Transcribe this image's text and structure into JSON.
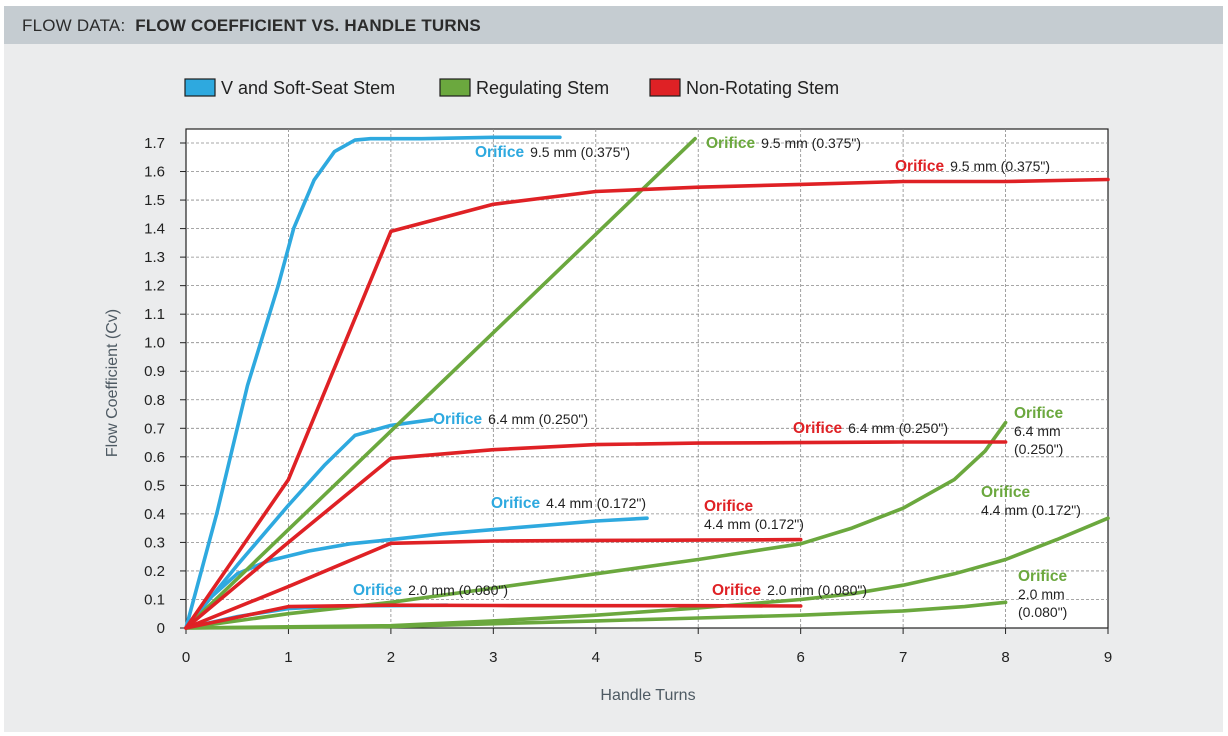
{
  "header": {
    "prefix": "FLOW DATA:",
    "title": "FLOW COEFFICIENT VS. HANDLE TURNS"
  },
  "colors": {
    "header_bg": "#c5ccd1",
    "panel_bg": "#ebeced",
    "v_soft_seat": "#2ea9df",
    "regulating": "#6ba83e",
    "non_rotating": "#df2125"
  },
  "legend": [
    {
      "label": "V and Soft-Seat Stem",
      "color": "#2ea9df"
    },
    {
      "label": "Regulating Stem",
      "color": "#6ba83e"
    },
    {
      "label": "Non-Rotating Stem",
      "color": "#df2125"
    }
  ],
  "chart_data": {
    "type": "line",
    "xlabel": "Handle Turns",
    "ylabel": "Flow Coefficient (Cv)",
    "xlim": [
      0,
      9
    ],
    "ylim": [
      0,
      1.75
    ],
    "x_ticks": [
      "0",
      "1",
      "2",
      "3",
      "4",
      "5",
      "6",
      "7",
      "8",
      "9"
    ],
    "y_ticks": [
      "0",
      "0.1",
      "0.2",
      "0.3",
      "0.4",
      "0.5",
      "0.6",
      "0.7",
      "0.8",
      "0.9",
      "1.0",
      "1.1",
      "1.2",
      "1.3",
      "1.4",
      "1.5",
      "1.6",
      "1.7"
    ],
    "grid": true,
    "series": [
      {
        "stem": "V and Soft-Seat Stem",
        "color": "#2ea9df",
        "points": [
          [
            0,
            0
          ],
          [
            0.3,
            0.4
          ],
          [
            0.6,
            0.85
          ],
          [
            0.9,
            1.2
          ],
          [
            1.05,
            1.4
          ],
          [
            1.25,
            1.57
          ],
          [
            1.45,
            1.67
          ],
          [
            1.65,
            1.71
          ],
          [
            1.8,
            1.715
          ],
          [
            2.3,
            1.715
          ],
          [
            3.0,
            1.72
          ],
          [
            3.65,
            1.72
          ]
        ]
      },
      {
        "stem": "V and Soft-Seat Stem",
        "color": "#2ea9df",
        "points": [
          [
            0,
            0
          ],
          [
            0.5,
            0.22
          ],
          [
            1.0,
            0.43
          ],
          [
            1.35,
            0.57
          ],
          [
            1.65,
            0.675
          ],
          [
            2.0,
            0.71
          ],
          [
            2.4,
            0.73
          ]
        ]
      },
      {
        "stem": "V and Soft-Seat Stem",
        "color": "#2ea9df",
        "points": [
          [
            0,
            0
          ],
          [
            0.25,
            0.11
          ],
          [
            0.5,
            0.19
          ],
          [
            0.8,
            0.235
          ],
          [
            1.2,
            0.27
          ],
          [
            1.6,
            0.295
          ],
          [
            2.0,
            0.31
          ],
          [
            2.5,
            0.33
          ],
          [
            3.0,
            0.345
          ],
          [
            3.5,
            0.36
          ],
          [
            4.0,
            0.375
          ],
          [
            4.5,
            0.385
          ]
        ]
      },
      {
        "stem": "V and Soft-Seat Stem",
        "color": "#2ea9df",
        "points": [
          [
            0,
            0
          ],
          [
            0.5,
            0.04
          ],
          [
            1.0,
            0.068
          ],
          [
            1.5,
            0.077
          ],
          [
            2.0,
            0.078
          ],
          [
            2.55,
            0.08
          ]
        ]
      },
      {
        "stem": "Regulating Stem",
        "color": "#6ba83e",
        "points": [
          [
            0,
            0
          ],
          [
            1,
            0.345
          ],
          [
            2,
            0.69
          ],
          [
            3,
            1.035
          ],
          [
            4,
            1.38
          ],
          [
            4.97,
            1.715
          ]
        ]
      },
      {
        "stem": "Regulating Stem",
        "color": "#6ba83e",
        "points": [
          [
            0,
            0
          ],
          [
            1,
            0.05
          ],
          [
            2,
            0.09
          ],
          [
            3,
            0.14
          ],
          [
            4,
            0.19
          ],
          [
            5,
            0.24
          ],
          [
            6,
            0.295
          ],
          [
            6.5,
            0.35
          ],
          [
            7,
            0.42
          ],
          [
            7.5,
            0.52
          ],
          [
            7.8,
            0.62
          ],
          [
            8.0,
            0.72
          ]
        ]
      },
      {
        "stem": "Regulating Stem",
        "color": "#6ba83e",
        "points": [
          [
            0,
            0
          ],
          [
            2,
            0.008
          ],
          [
            3,
            0.025
          ],
          [
            4,
            0.045
          ],
          [
            5,
            0.07
          ],
          [
            6,
            0.1
          ],
          [
            6.5,
            0.12
          ],
          [
            7,
            0.15
          ],
          [
            7.5,
            0.19
          ],
          [
            8,
            0.24
          ],
          [
            8.5,
            0.31
          ],
          [
            9,
            0.385
          ]
        ]
      },
      {
        "stem": "Regulating Stem",
        "color": "#6ba83e",
        "points": [
          [
            0,
            0
          ],
          [
            2,
            0.005
          ],
          [
            4,
            0.025
          ],
          [
            5,
            0.035
          ],
          [
            6,
            0.045
          ],
          [
            7,
            0.06
          ],
          [
            7.6,
            0.075
          ],
          [
            8.0,
            0.09
          ]
        ]
      },
      {
        "stem": "Non-Rotating Stem",
        "color": "#df2125",
        "points": [
          [
            0,
            0
          ],
          [
            1,
            0.52
          ],
          [
            2,
            1.39
          ],
          [
            3,
            1.485
          ],
          [
            4,
            1.53
          ],
          [
            5,
            1.545
          ],
          [
            6,
            1.555
          ],
          [
            7,
            1.565
          ],
          [
            8,
            1.565
          ],
          [
            9,
            1.572
          ]
        ]
      },
      {
        "stem": "Non-Rotating Stem",
        "color": "#df2125",
        "points": [
          [
            0,
            0
          ],
          [
            1,
            0.3
          ],
          [
            2,
            0.595
          ],
          [
            3,
            0.625
          ],
          [
            4,
            0.643
          ],
          [
            5,
            0.648
          ],
          [
            6,
            0.65
          ],
          [
            7,
            0.652
          ],
          [
            8,
            0.652
          ]
        ]
      },
      {
        "stem": "Non-Rotating Stem",
        "color": "#df2125",
        "points": [
          [
            0,
            0
          ],
          [
            1,
            0.145
          ],
          [
            2,
            0.297
          ],
          [
            3,
            0.305
          ],
          [
            4,
            0.307
          ],
          [
            5,
            0.308
          ],
          [
            6,
            0.31
          ]
        ]
      },
      {
        "stem": "Non-Rotating Stem",
        "color": "#df2125",
        "points": [
          [
            0,
            0
          ],
          [
            1,
            0.075
          ],
          [
            2,
            0.08
          ],
          [
            3,
            0.079
          ],
          [
            4,
            0.078
          ],
          [
            5,
            0.078
          ],
          [
            6,
            0.077
          ]
        ]
      }
    ],
    "annotations": [
      {
        "word": "Orifice",
        "spec": "9.5 mm (0.375\")",
        "color": "#2ea9df",
        "lines": 1
      },
      {
        "word": "Orifice",
        "spec": "6.4 mm (0.250\")",
        "color": "#2ea9df",
        "lines": 1
      },
      {
        "word": "Orifice",
        "spec": "4.4 mm (0.172\")",
        "color": "#2ea9df",
        "lines": 1
      },
      {
        "word": "Orifice",
        "spec": "2.0 mm (0.080\")",
        "color": "#2ea9df",
        "lines": 1
      },
      {
        "word": "Orifice",
        "spec": "9.5 mm (0.375\")",
        "color": "#6ba83e",
        "lines": 1
      },
      {
        "word": "Orifice",
        "spec": "6.4 mm (0.250\")",
        "spec_lines": [
          "6.4 mm",
          "(0.250\")"
        ],
        "color": "#6ba83e",
        "lines": 3
      },
      {
        "word": "Orifice",
        "spec": "4.4 mm (0.172\")",
        "color": "#6ba83e",
        "lines": 2
      },
      {
        "word": "Orifice",
        "spec": "2.0 mm (0.080\")",
        "spec_lines": [
          "2.0 mm",
          "(0.080\")"
        ],
        "color": "#6ba83e",
        "lines": 3
      },
      {
        "word": "Orifice",
        "spec": "9.5 mm (0.375\")",
        "color": "#df2125",
        "lines": 1
      },
      {
        "word": "Orifice",
        "spec": "6.4 mm (0.250\")",
        "color": "#df2125",
        "lines": 1
      },
      {
        "word": "Orifice",
        "spec": "4.4 mm (0.172\")",
        "color": "#df2125",
        "lines": 2
      },
      {
        "word": "Orifice",
        "spec": "2.0 mm (0.080\")",
        "color": "#df2125",
        "lines": 1
      }
    ]
  }
}
